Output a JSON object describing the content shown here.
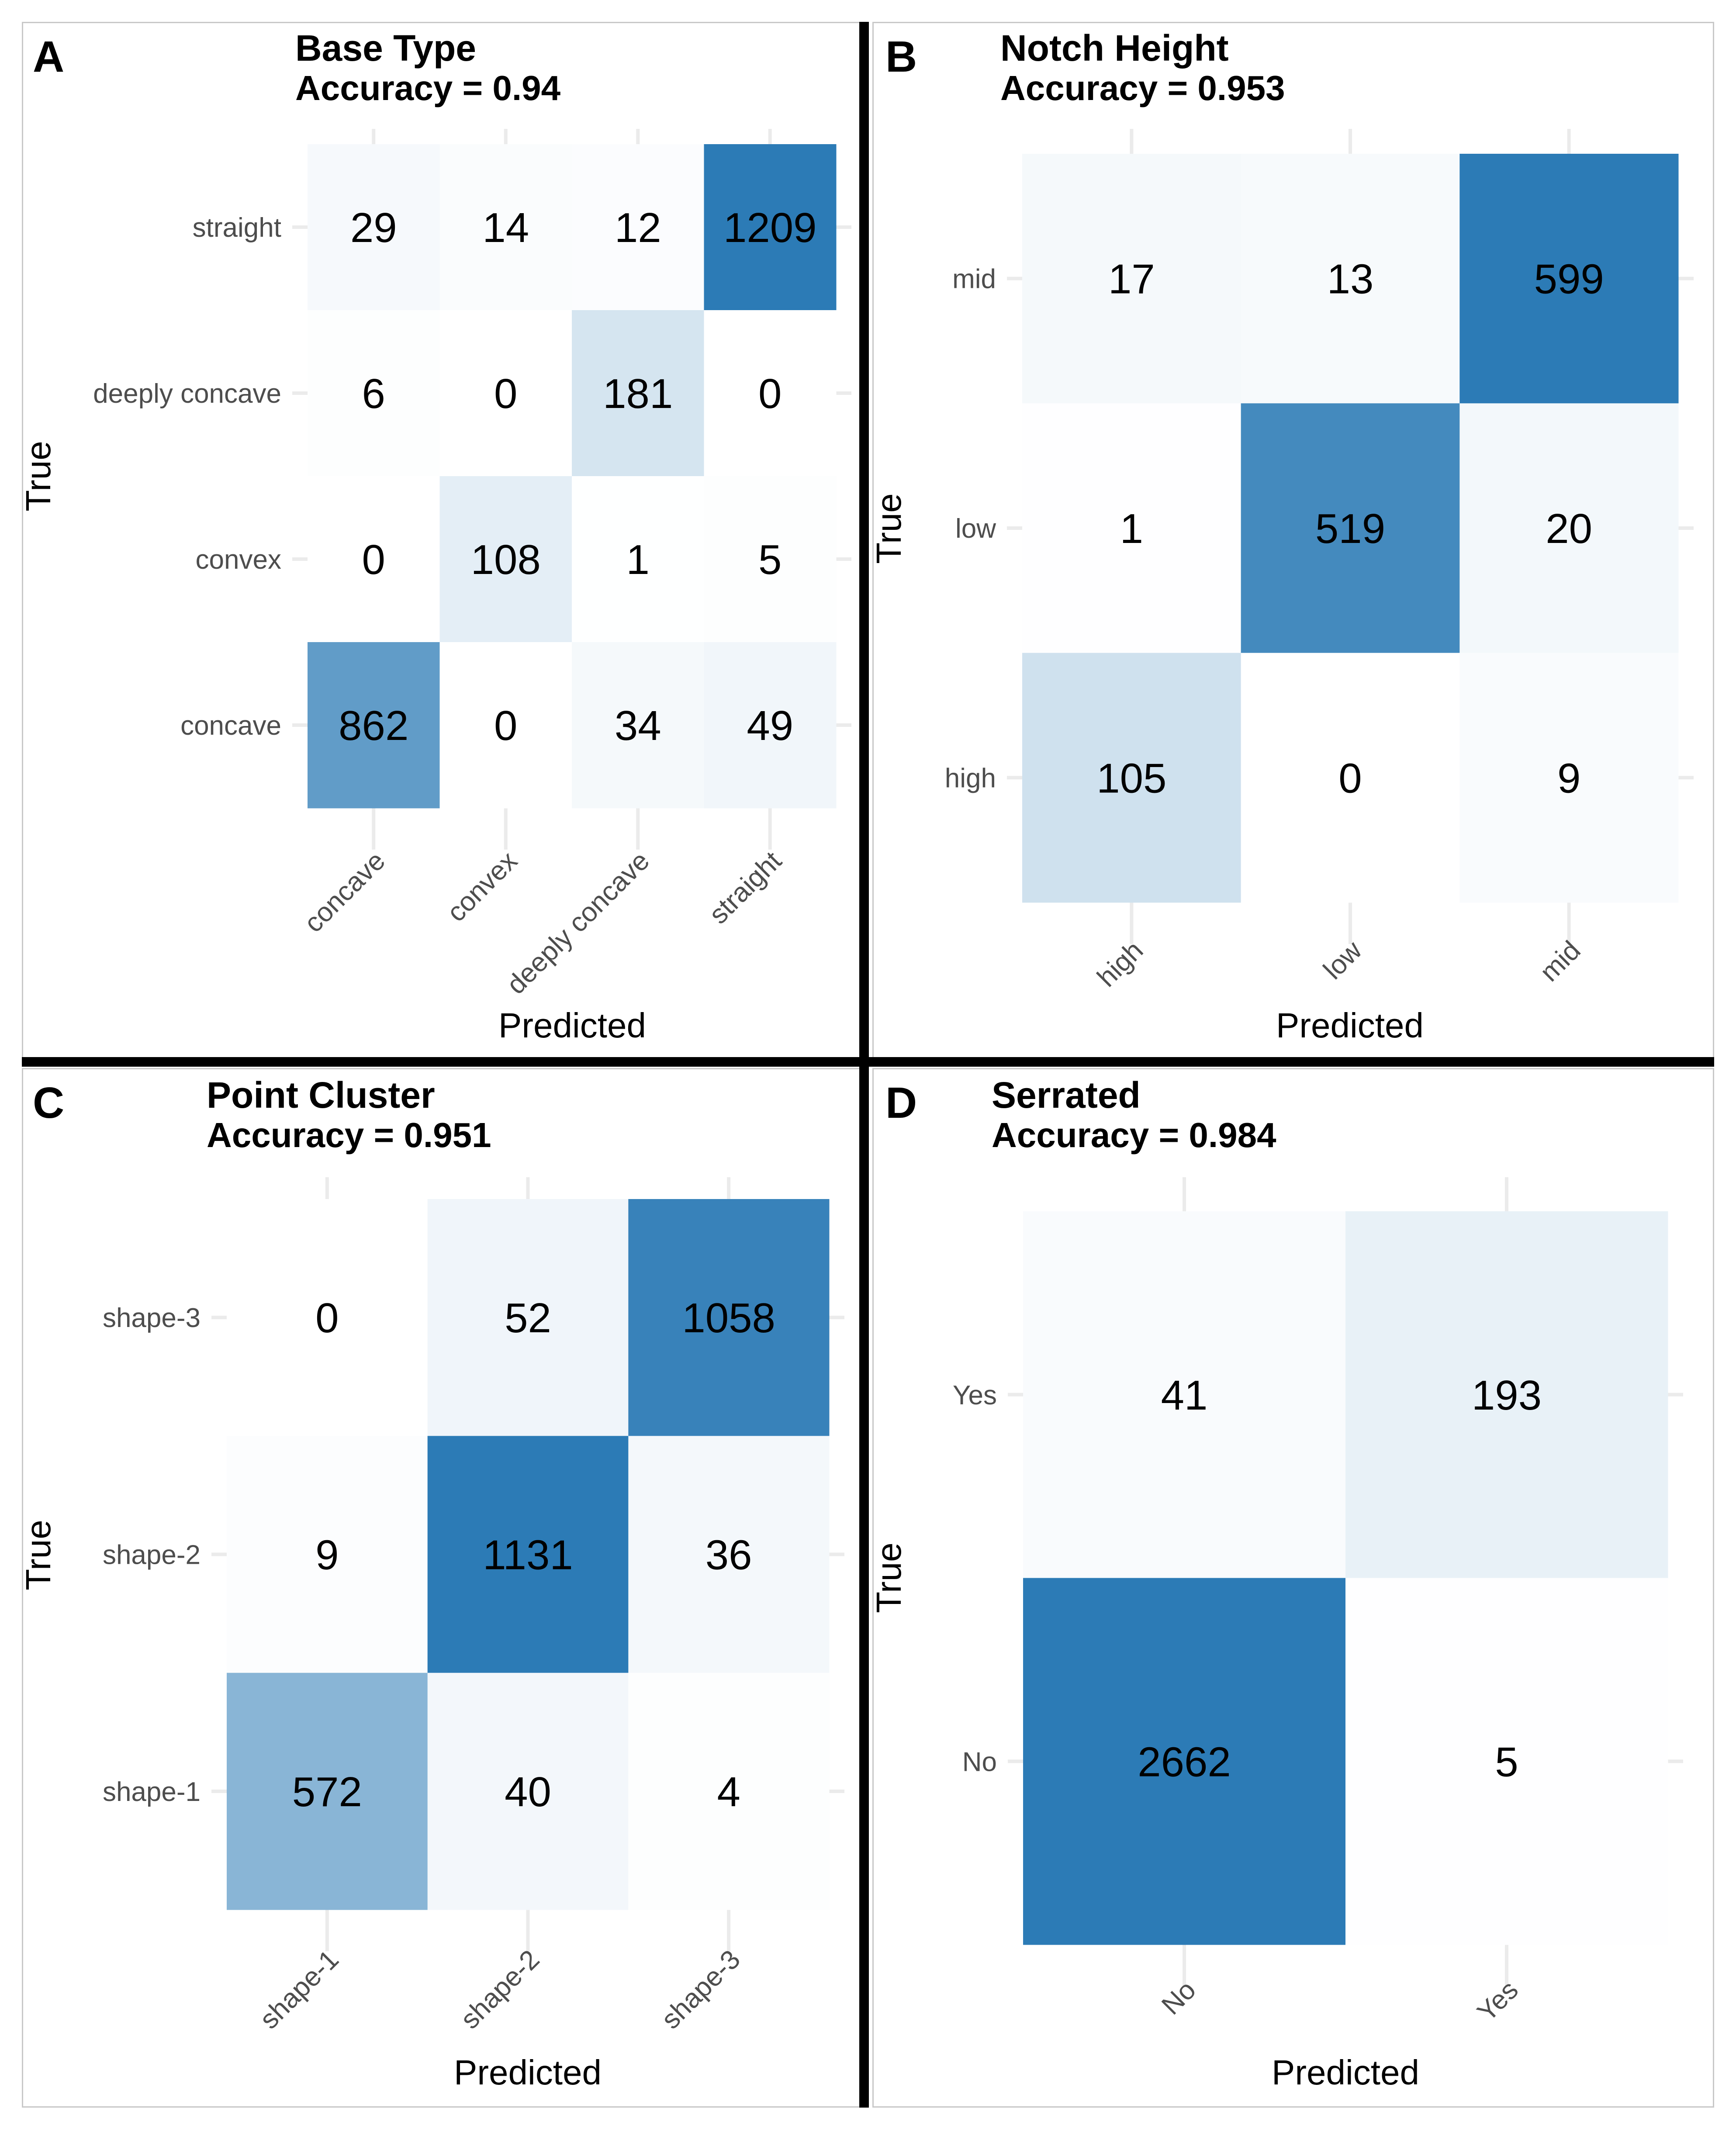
{
  "figure": {
    "panels": [
      {
        "letter": "A",
        "title": "Base Type",
        "subtitle": "Accuracy = 0.94"
      },
      {
        "letter": "B",
        "title": "Notch Height",
        "subtitle": "Accuracy = 0.953"
      },
      {
        "letter": "C",
        "title": "Point Cluster",
        "subtitle": "Accuracy = 0.951"
      },
      {
        "letter": "D",
        "title": "Serrated",
        "subtitle": "Accuracy = 0.984"
      }
    ]
  },
  "chart_data": [
    {
      "type": "heatmap",
      "panel": "A",
      "title": "Base Type",
      "subtitle": "Accuracy = 0.94",
      "xlabel": "Predicted",
      "ylabel": "True",
      "x_categories": [
        "concave",
        "convex",
        "deeply concave",
        "straight"
      ],
      "y_categories_top_to_bottom": [
        "straight",
        "deeply concave",
        "convex",
        "concave"
      ],
      "values": [
        [
          29,
          14,
          12,
          1209
        ],
        [
          6,
          0,
          181,
          0
        ],
        [
          0,
          108,
          1,
          5
        ],
        [
          862,
          0,
          34,
          49
        ]
      ],
      "colormap": [
        "#ffffff",
        "#2c7bb6"
      ],
      "x_tick_rotation": 45,
      "grid": true
    },
    {
      "type": "heatmap",
      "panel": "B",
      "title": "Notch Height",
      "subtitle": "Accuracy = 0.953",
      "xlabel": "Predicted",
      "ylabel": "True",
      "x_categories": [
        "high",
        "low",
        "mid"
      ],
      "y_categories_top_to_bottom": [
        "mid",
        "low",
        "high"
      ],
      "values": [
        [
          17,
          13,
          599
        ],
        [
          1,
          519,
          20
        ],
        [
          105,
          0,
          9
        ]
      ],
      "colormap": [
        "#ffffff",
        "#2c7bb6"
      ],
      "x_tick_rotation": 45,
      "grid": true
    },
    {
      "type": "heatmap",
      "panel": "C",
      "title": "Point Cluster",
      "subtitle": "Accuracy = 0.951",
      "xlabel": "Predicted",
      "ylabel": "True",
      "x_categories": [
        "shape-1",
        "shape-2",
        "shape-3"
      ],
      "y_categories_top_to_bottom": [
        "shape-3",
        "shape-2",
        "shape-1"
      ],
      "values": [
        [
          0,
          52,
          1058
        ],
        [
          9,
          1131,
          36
        ],
        [
          572,
          40,
          4
        ]
      ],
      "colormap": [
        "#ffffff",
        "#2c7bb6"
      ],
      "x_tick_rotation": 45,
      "grid": true
    },
    {
      "type": "heatmap",
      "panel": "D",
      "title": "Serrated",
      "subtitle": "Accuracy = 0.984",
      "xlabel": "Predicted",
      "ylabel": "True",
      "x_categories": [
        "No",
        "Yes"
      ],
      "y_categories_top_to_bottom": [
        "Yes",
        "No"
      ],
      "values": [
        [
          41,
          193
        ],
        [
          2662,
          5
        ]
      ],
      "colormap": [
        "#ffffff",
        "#2c7bb6"
      ],
      "x_tick_rotation": 45,
      "grid": true
    }
  ]
}
